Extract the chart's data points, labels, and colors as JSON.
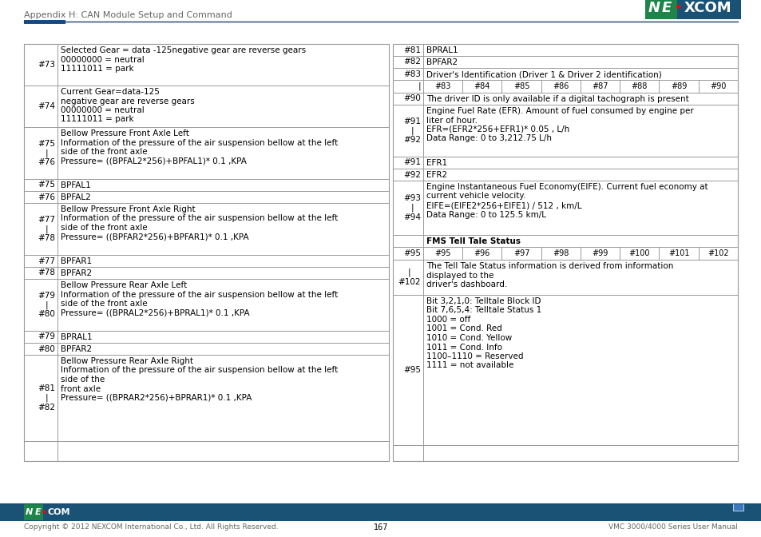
{
  "header_text": "Appendix H: CAN Module Setup and Command",
  "footer_left": "Copyright © 2012 NEXCOM International Co., Ltd. All Rights Reserved.",
  "footer_center": "167",
  "footer_right": "VMC 3000/4000 Series User Manual",
  "header_line_color": "#1a3f6f",
  "header_block_color": "#1a4f8a",
  "bg_color": "#ffffff",
  "text_color": "#000000",
  "gray_text": "#666666",
  "border_color": "#999999",
  "nexcom_blue": "#1a5276",
  "nexcom_green": "#1e8449",
  "footer_bar_color": "#1a5276"
}
